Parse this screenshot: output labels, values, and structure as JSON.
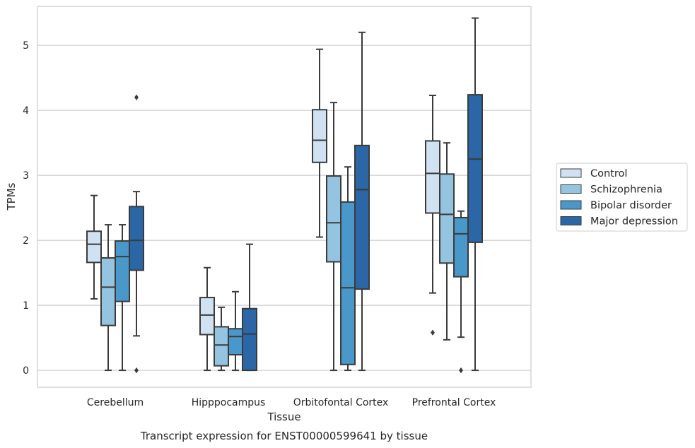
{
  "chart_data": {
    "type": "box",
    "title": "",
    "caption": "Transcript expression for ENST00000599641 by tissue",
    "xlabel": "Tissue",
    "ylabel": "TPMs",
    "ylim": [
      -0.26,
      5.6
    ],
    "yticks": [
      0,
      1,
      2,
      3,
      4,
      5
    ],
    "grid": "horizontal",
    "legend_position": "right",
    "categories": [
      "Cerebellum",
      "Hipppocampus",
      "Orbitofontal Cortex",
      "Prefrontal Cortex"
    ],
    "series": [
      {
        "name": "Control",
        "color": "#d0e1f2",
        "boxes": [
          {
            "whislo": 1.1,
            "q1": 1.66,
            "med": 1.94,
            "q3": 2.14,
            "whishi": 2.69,
            "fliers": []
          },
          {
            "whislo": 0.0,
            "q1": 0.55,
            "med": 0.85,
            "q3": 1.12,
            "whishi": 1.58,
            "fliers": []
          },
          {
            "whislo": 2.05,
            "q1": 3.2,
            "med": 3.54,
            "q3": 4.01,
            "whishi": 4.94,
            "fliers": []
          },
          {
            "whislo": 1.19,
            "q1": 2.42,
            "med": 3.03,
            "q3": 3.53,
            "whishi": 4.23,
            "fliers": [
              0.58
            ]
          }
        ]
      },
      {
        "name": "Schizophrenia",
        "color": "#94c4df",
        "boxes": [
          {
            "whislo": 0.0,
            "q1": 0.69,
            "med": 1.28,
            "q3": 1.73,
            "whishi": 2.24,
            "fliers": []
          },
          {
            "whislo": 0.0,
            "q1": 0.07,
            "med": 0.39,
            "q3": 0.67,
            "whishi": 0.97,
            "fliers": []
          },
          {
            "whislo": 0.0,
            "q1": 1.67,
            "med": 2.27,
            "q3": 2.99,
            "whishi": 4.12,
            "fliers": []
          },
          {
            "whislo": 0.47,
            "q1": 1.65,
            "med": 2.4,
            "q3": 3.02,
            "whishi": 3.5,
            "fliers": []
          }
        ]
      },
      {
        "name": "Bipolar disorder",
        "color": "#4a98c9",
        "boxes": [
          {
            "whislo": 0.0,
            "q1": 1.06,
            "med": 1.75,
            "q3": 1.99,
            "whishi": 2.24,
            "fliers": []
          },
          {
            "whislo": 0.0,
            "q1": 0.24,
            "med": 0.52,
            "q3": 0.64,
            "whishi": 1.21,
            "fliers": []
          },
          {
            "whislo": 0.0,
            "q1": 0.09,
            "med": 1.27,
            "q3": 2.59,
            "whishi": 3.13,
            "fliers": []
          },
          {
            "whislo": 0.51,
            "q1": 1.44,
            "med": 2.1,
            "q3": 2.35,
            "whishi": 2.45,
            "fliers": [
              0.0
            ]
          }
        ]
      },
      {
        "name": "Major depression",
        "color": "#2b66a6",
        "boxes": [
          {
            "whislo": 0.53,
            "q1": 1.54,
            "med": 2.0,
            "q3": 2.52,
            "whishi": 2.75,
            "fliers": [
              4.2,
              0.0
            ]
          },
          {
            "whislo": 0.0,
            "q1": 0.0,
            "med": 0.56,
            "q3": 0.95,
            "whishi": 1.94,
            "fliers": []
          },
          {
            "whislo": 0.0,
            "q1": 1.25,
            "med": 2.78,
            "q3": 3.46,
            "whishi": 5.2,
            "fliers": []
          },
          {
            "whislo": 0.0,
            "q1": 1.97,
            "med": 3.25,
            "q3": 4.24,
            "whishi": 5.42,
            "fliers": []
          }
        ]
      }
    ]
  }
}
